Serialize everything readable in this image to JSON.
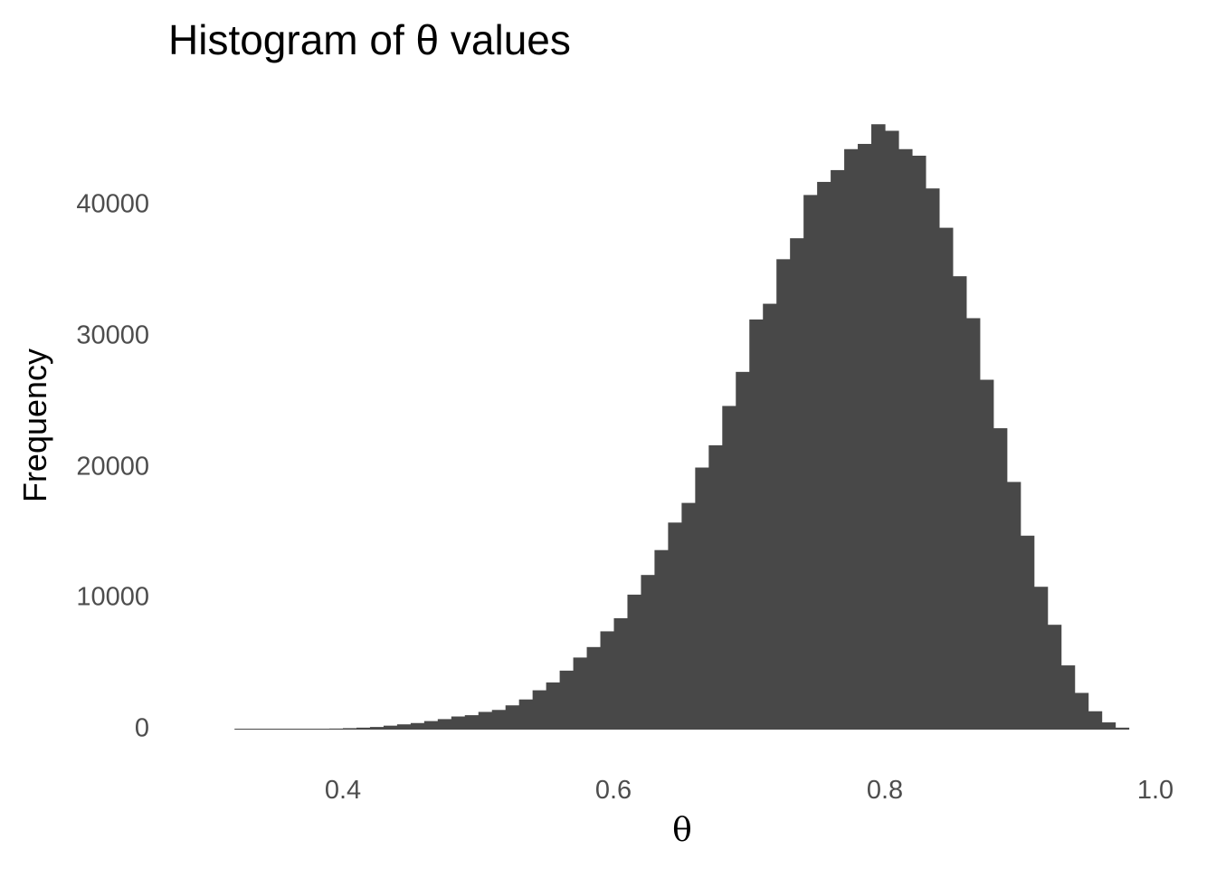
{
  "chart_data": {
    "type": "bar",
    "title": "Histogram of θ values",
    "xlabel": "θ",
    "ylabel": "Frequency",
    "xlim": [
      0.31,
      1.0
    ],
    "ylim": [
      0,
      46000
    ],
    "xticks": [
      0.4,
      0.6,
      0.8,
      1.0
    ],
    "xtick_labels": [
      "0.4",
      "0.6",
      "0.8",
      "1.0"
    ],
    "yticks": [
      0,
      10000,
      20000,
      30000,
      40000
    ],
    "ytick_labels": [
      "0",
      "10000",
      "20000",
      "30000",
      "40000"
    ],
    "grid": false,
    "bar_color": "#484848",
    "bins": {
      "start": 0.32,
      "width": 0.01,
      "counts": [
        5,
        5,
        10,
        15,
        25,
        35,
        55,
        80,
        110,
        150,
        200,
        300,
        400,
        500,
        650,
        800,
        1000,
        1100,
        1350,
        1500,
        1850,
        2300,
        3000,
        3600,
        4500,
        5500,
        6300,
        7500,
        8500,
        10300,
        11800,
        13700,
        15800,
        17300,
        20000,
        21700,
        24700,
        27300,
        31300,
        32500,
        35900,
        37500,
        40800,
        41800,
        42700,
        44300,
        44700,
        46200,
        45700,
        44300,
        43800,
        41300,
        38300,
        34600,
        31400,
        26700,
        23000,
        18900,
        14800,
        10900,
        8000,
        4900,
        2800,
        1400,
        550,
        150
      ]
    }
  }
}
